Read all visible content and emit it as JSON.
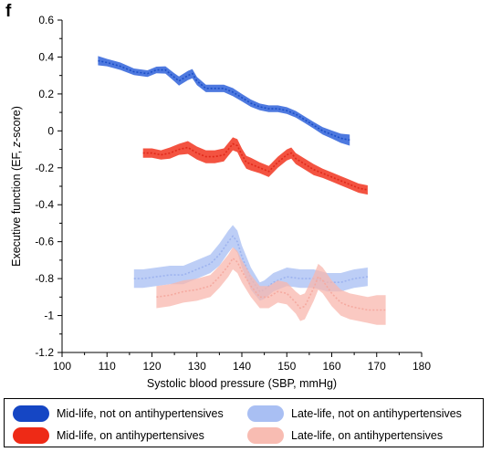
{
  "panel_letter": "f",
  "chart_data": {
    "type": "line",
    "xlabel": "Systolic blood pressure (SBP, mmHg)",
    "ylabel_parts": [
      "Executive function (EF, ",
      "z",
      "-score)"
    ],
    "xlim": [
      100,
      180
    ],
    "ylim": [
      -1.2,
      0.6
    ],
    "x_ticks": [
      100,
      110,
      120,
      130,
      140,
      150,
      160,
      170,
      180
    ],
    "y_ticks": [
      -1.2,
      -1,
      -0.8,
      -0.6,
      -0.4,
      -0.2,
      0,
      0.2,
      0.4,
      0.6
    ],
    "grid": false,
    "legend_position": "bottom",
    "series": [
      {
        "name": "Mid-life, not on antihypertensives",
        "color": "#1c4fc7",
        "band_color": "#2f62d9",
        "band_opacity": 0.85,
        "line_opacity": 1,
        "x": [
          108,
          110,
          113,
          116,
          119,
          121,
          123,
          125,
          126,
          128,
          129,
          130,
          132,
          134,
          136,
          138,
          140,
          142,
          144,
          146,
          148,
          150,
          152,
          154,
          156,
          158,
          160,
          162,
          164
        ],
        "y": [
          0.38,
          0.37,
          0.35,
          0.32,
          0.31,
          0.33,
          0.33,
          0.29,
          0.27,
          0.3,
          0.31,
          0.27,
          0.23,
          0.23,
          0.23,
          0.21,
          0.18,
          0.15,
          0.13,
          0.12,
          0.12,
          0.11,
          0.09,
          0.06,
          0.03,
          0.0,
          -0.02,
          -0.04,
          -0.05
        ],
        "hw": [
          0.025,
          0.02,
          0.02,
          0.018,
          0.018,
          0.018,
          0.02,
          0.022,
          0.025,
          0.025,
          0.025,
          0.022,
          0.02,
          0.02,
          0.02,
          0.022,
          0.02,
          0.02,
          0.018,
          0.018,
          0.018,
          0.018,
          0.018,
          0.018,
          0.018,
          0.02,
          0.022,
          0.025,
          0.03
        ]
      },
      {
        "name": "Mid-life, on antihypertensives",
        "color": "#e0291a",
        "band_color": "#f2402c",
        "band_opacity": 0.9,
        "line_opacity": 1,
        "x": [
          118,
          120,
          122,
          124,
          126,
          128,
          130,
          132,
          134,
          136,
          137,
          138,
          139,
          140,
          141,
          142,
          144,
          146,
          148,
          150,
          151,
          152,
          154,
          156,
          158,
          160,
          162,
          164,
          166,
          168
        ],
        "y": [
          -0.12,
          -0.12,
          -0.13,
          -0.12,
          -0.1,
          -0.09,
          -0.12,
          -0.14,
          -0.14,
          -0.13,
          -0.1,
          -0.07,
          -0.08,
          -0.13,
          -0.17,
          -0.18,
          -0.2,
          -0.22,
          -0.17,
          -0.13,
          -0.12,
          -0.15,
          -0.18,
          -0.21,
          -0.23,
          -0.25,
          -0.27,
          -0.29,
          -0.31,
          -0.32
        ],
        "hw": [
          0.025,
          0.025,
          0.025,
          0.03,
          0.03,
          0.035,
          0.035,
          0.035,
          0.035,
          0.035,
          0.035,
          0.035,
          0.035,
          0.035,
          0.035,
          0.035,
          0.03,
          0.03,
          0.03,
          0.03,
          0.03,
          0.03,
          0.03,
          0.03,
          0.025,
          0.025,
          0.025,
          0.025,
          0.025,
          0.025
        ]
      },
      {
        "name": "Late-life, not on antihypertensives",
        "color": "#9db3ef",
        "band_color": "#a7bdf3",
        "band_opacity": 0.75,
        "line_opacity": 1,
        "x": [
          116,
          118,
          121,
          124,
          127,
          130,
          133,
          135,
          137,
          138,
          139,
          140,
          142,
          144,
          145,
          147,
          150,
          153,
          156,
          159,
          162,
          165,
          168
        ],
        "y": [
          -0.8,
          -0.8,
          -0.79,
          -0.78,
          -0.78,
          -0.75,
          -0.72,
          -0.67,
          -0.6,
          -0.57,
          -0.6,
          -0.68,
          -0.8,
          -0.87,
          -0.86,
          -0.82,
          -0.79,
          -0.8,
          -0.8,
          -0.82,
          -0.82,
          -0.8,
          -0.79
        ],
        "hw": [
          0.05,
          0.05,
          0.05,
          0.05,
          0.05,
          0.05,
          0.05,
          0.06,
          0.06,
          0.06,
          0.06,
          0.06,
          0.06,
          0.05,
          0.05,
          0.05,
          0.05,
          0.05,
          0.05,
          0.05,
          0.05,
          0.05,
          0.05
        ]
      },
      {
        "name": "Late-life, on antihypertensives",
        "color": "#f5aaa0",
        "band_color": "#f8b7ad",
        "band_opacity": 0.75,
        "line_opacity": 1,
        "x": [
          121,
          124,
          127,
          130,
          133,
          135,
          137,
          138,
          139,
          140,
          142,
          144,
          146,
          148,
          150,
          152,
          153,
          154,
          156,
          157,
          158,
          160,
          162,
          164,
          166,
          168,
          170,
          172
        ],
        "y": [
          -0.9,
          -0.89,
          -0.87,
          -0.86,
          -0.84,
          -0.79,
          -0.73,
          -0.69,
          -0.71,
          -0.76,
          -0.84,
          -0.9,
          -0.9,
          -0.87,
          -0.88,
          -0.93,
          -0.96,
          -0.95,
          -0.85,
          -0.79,
          -0.81,
          -0.88,
          -0.93,
          -0.95,
          -0.96,
          -0.97,
          -0.97,
          -0.97
        ],
        "hw": [
          0.06,
          0.06,
          0.06,
          0.06,
          0.06,
          0.06,
          0.06,
          0.06,
          0.06,
          0.06,
          0.06,
          0.06,
          0.06,
          0.06,
          0.06,
          0.06,
          0.07,
          0.07,
          0.07,
          0.07,
          0.07,
          0.07,
          0.07,
          0.07,
          0.07,
          0.07,
          0.08,
          0.08
        ]
      }
    ]
  },
  "legend": {
    "items": [
      {
        "label": "Mid-life, not on antihypertensives",
        "color": "#1546c4"
      },
      {
        "label": "Late-life, not on antihypertensives",
        "color": "#a9bff3"
      },
      {
        "label": "Mid-life, on antihypertensives",
        "color": "#ee2a16"
      },
      {
        "label": "Late-life, on antihypertensives",
        "color": "#f8bcb2"
      }
    ]
  }
}
